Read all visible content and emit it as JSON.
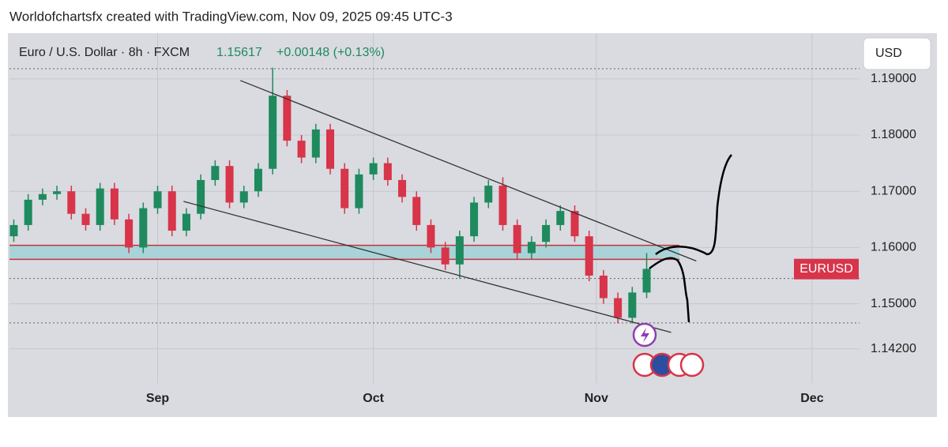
{
  "chart_data": {
    "type": "candlestick",
    "title": "Worldofchartsfx created with TradingView.com, Nov 09, 2025 09:45 UTC-3",
    "symbol": "Euro / U.S. Dollar · 8h · FXCM",
    "last_price": 1.15617,
    "change": "+0.00148 (+0.13%)",
    "currency": "USD",
    "ticker_label": "EURUSD",
    "up_color": "#1e8a5e",
    "down_color": "#d8344a",
    "x": [
      -20,
      -18,
      -16,
      -14,
      -12,
      -10,
      -8,
      -6,
      -4,
      -2,
      0,
      2,
      4,
      6,
      8,
      10,
      12,
      14,
      16,
      18,
      20,
      22,
      24,
      26,
      28,
      30,
      32,
      34,
      36,
      38,
      40,
      42,
      44,
      46,
      48,
      50,
      52,
      54,
      56,
      58,
      60,
      62,
      64,
      66,
      68
    ],
    "open": [
      1.162,
      1.164,
      1.1685,
      1.1695,
      1.17,
      1.166,
      1.164,
      1.1705,
      1.165,
      1.16,
      1.167,
      1.17,
      1.163,
      1.166,
      1.172,
      1.1745,
      1.168,
      1.17,
      1.174,
      1.187,
      1.179,
      1.176,
      1.181,
      1.174,
      1.167,
      1.173,
      1.175,
      1.172,
      1.169,
      1.164,
      1.16,
      1.157,
      1.162,
      1.168,
      1.171,
      1.164,
      1.159,
      1.161,
      1.164,
      1.1665,
      1.162,
      1.155,
      1.151,
      1.1475,
      1.152
    ],
    "high": [
      1.165,
      1.1695,
      1.1705,
      1.171,
      1.171,
      1.167,
      1.1715,
      1.1715,
      1.166,
      1.168,
      1.171,
      1.171,
      1.167,
      1.173,
      1.1755,
      1.1755,
      1.171,
      1.175,
      1.192,
      1.188,
      1.18,
      1.182,
      1.182,
      1.175,
      1.174,
      1.176,
      1.176,
      1.173,
      1.17,
      1.165,
      1.161,
      1.163,
      1.169,
      1.172,
      1.1725,
      1.165,
      1.162,
      1.165,
      1.1675,
      1.1675,
      1.163,
      1.156,
      1.152,
      1.153,
      1.159
    ],
    "low": [
      1.161,
      1.163,
      1.1675,
      1.1685,
      1.165,
      1.163,
      1.163,
      1.164,
      1.159,
      1.159,
      1.166,
      1.162,
      1.162,
      1.165,
      1.171,
      1.167,
      1.167,
      1.169,
      1.173,
      1.178,
      1.175,
      1.175,
      1.173,
      1.166,
      1.166,
      1.172,
      1.171,
      1.168,
      1.163,
      1.159,
      1.156,
      1.1545,
      1.161,
      1.167,
      1.163,
      1.158,
      1.158,
      1.16,
      1.163,
      1.161,
      1.154,
      1.15,
      1.1465,
      1.1465,
      1.151
    ],
    "close": [
      1.164,
      1.1685,
      1.1695,
      1.17,
      1.166,
      1.164,
      1.1705,
      1.165,
      1.16,
      1.167,
      1.17,
      1.163,
      1.166,
      1.172,
      1.1745,
      1.168,
      1.17,
      1.174,
      1.187,
      1.179,
      1.176,
      1.181,
      1.174,
      1.167,
      1.173,
      1.175,
      1.172,
      1.169,
      1.164,
      1.16,
      1.157,
      1.162,
      1.168,
      1.171,
      1.164,
      1.159,
      1.161,
      1.164,
      1.1665,
      1.162,
      1.155,
      1.151,
      1.1475,
      1.152,
      1.1562
    ],
    "xlim": [
      -20.6,
      97.6
    ],
    "xticks": [
      {
        "value": 0,
        "label": "Sep"
      },
      {
        "value": 30,
        "label": "Oct"
      },
      {
        "value": 61,
        "label": "Nov"
      },
      {
        "value": 91,
        "label": "Dec"
      }
    ],
    "ylim": [
      1.1359,
      1.1977
    ],
    "yticks": [
      {
        "value": 1.19,
        "label": "1.19000"
      },
      {
        "value": 1.18,
        "label": "1.18000"
      },
      {
        "value": 1.17,
        "label": "1.17000"
      },
      {
        "value": 1.16,
        "label": "1.16000"
      },
      {
        "value": 1.15,
        "label": "1.15000"
      },
      {
        "value": 1.142,
        "label": "1.14200"
      }
    ],
    "grid": true,
    "zone": [
      1.1579,
      1.1604
    ],
    "zone_color": "#a9d3d8",
    "trendlines": [
      {
        "x": [
          11.5,
          74.9
        ],
        "y": [
          1.1897,
          1.1576
        ]
      },
      {
        "x": [
          3.6,
          71.4
        ],
        "y": [
          1.1682,
          1.1449
        ]
      }
    ],
    "price_lines": [
      1.1918,
      1.1545,
      1.1466
    ]
  }
}
